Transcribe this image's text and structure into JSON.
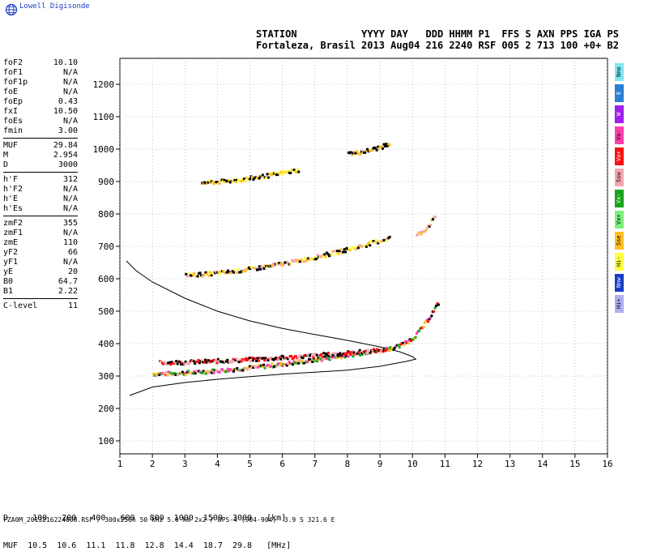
{
  "app": {
    "brand": "Lowell Digisonde",
    "logo_icon": "globe-icon"
  },
  "header": {
    "line1": "STATION           YYYY DAY   DDD HHMM P1  FFS S AXN PPS IGA PS",
    "line2": "Fortaleza, Brasil 2013 Aug04 216 2240 RSF 005 2 713 100 +0+ B2"
  },
  "params": [
    {
      "label": "foF2",
      "value": "10.10"
    },
    {
      "label": "foF1",
      "value": "N/A"
    },
    {
      "label": "foF1p",
      "value": "N/A"
    },
    {
      "label": "foE",
      "value": "N/A"
    },
    {
      "label": "foEp",
      "value": "0.43"
    },
    {
      "label": "fxI",
      "value": "10.50"
    },
    {
      "label": "foEs",
      "value": "N/A"
    },
    {
      "label": "fmin",
      "value": "3.00"
    },
    {
      "sep": true
    },
    {
      "label": "MUF",
      "value": "29.84"
    },
    {
      "label": "M",
      "value": "2.954"
    },
    {
      "label": "D",
      "value": "3000"
    },
    {
      "sep": true
    },
    {
      "label": "h'F",
      "value": "312"
    },
    {
      "label": "h'F2",
      "value": "N/A"
    },
    {
      "label": "h'E",
      "value": "N/A"
    },
    {
      "label": "h'Es",
      "value": "N/A"
    },
    {
      "sep": true
    },
    {
      "label": "zmF2",
      "value": "355"
    },
    {
      "label": "zmF1",
      "value": "N/A"
    },
    {
      "label": "zmE",
      "value": "110"
    },
    {
      "label": "yF2",
      "value": "66"
    },
    {
      "label": "yF1",
      "value": "N/A"
    },
    {
      "label": "yE",
      "value": "20"
    },
    {
      "label": "B0",
      "value": "64.7"
    },
    {
      "label": "B1",
      "value": "2.22"
    },
    {
      "sep": true
    },
    {
      "label": "C-level",
      "value": "11"
    }
  ],
  "legend": [
    {
      "label": "Nno",
      "color": "#7fe6f0"
    },
    {
      "label": "E",
      "color": "#2a7fd4"
    },
    {
      "label": "W",
      "color": "#a020f0"
    },
    {
      "label": "Vo-",
      "color": "#ff3fb0"
    },
    {
      "label": "Vo+",
      "color": "#ff1010"
    },
    {
      "label": "Ssw",
      "color": "#f4a6b0"
    },
    {
      "label": "Vx-",
      "color": "#1aa41a"
    },
    {
      "label": "Vx+",
      "color": "#7ef07e"
    },
    {
      "label": "Sse",
      "color": "#ffc020"
    },
    {
      "label": "Hi-",
      "color": "#ffff40"
    },
    {
      "label": "Nnw",
      "color": "#1a3cc8"
    },
    {
      "label": "Hi+",
      "color": "#b0b0f0"
    }
  ],
  "bottom": {
    "d_row": "D     100   200   400   600   800  1000  1500  3000   [km]",
    "muf_row": "MUF  10.5  10.6  11.1  11.8  12.8  14.4  18.7  29.8   [MHz]"
  },
  "footer": "FZA0M_2013216224000.RSF / 300x256h 50 kHz 5.0 km 2x2 / DPS-4 (904-904)  3.9 S 321.6 E",
  "chart_data": {
    "type": "scatter",
    "xlabel": "",
    "ylabel": "",
    "x_ticks": [
      1,
      2,
      3,
      4,
      5,
      6,
      7,
      8,
      9,
      10,
      11,
      12,
      13,
      14,
      15,
      16
    ],
    "y_ticks": [
      100,
      200,
      300,
      400,
      500,
      600,
      700,
      800,
      900,
      1000,
      1100,
      1200
    ],
    "xlim": [
      1,
      16
    ],
    "ylim": [
      60,
      1280
    ],
    "grid": "dotted",
    "profile_curve": [
      [
        1.2,
        655
      ],
      [
        1.5,
        625
      ],
      [
        2,
        590
      ],
      [
        3,
        540
      ],
      [
        4,
        500
      ],
      [
        5,
        470
      ],
      [
        6,
        447
      ],
      [
        7,
        428
      ],
      [
        8,
        410
      ],
      [
        9,
        390
      ],
      [
        9.6,
        375
      ],
      [
        10.0,
        360
      ],
      [
        10.1,
        352
      ],
      [
        9.8,
        345
      ],
      [
        9.0,
        330
      ],
      [
        8.0,
        318
      ],
      [
        7.0,
        312
      ],
      [
        6.0,
        306
      ],
      [
        5.0,
        298
      ],
      [
        4.0,
        290
      ],
      [
        3.0,
        280
      ],
      [
        2.0,
        266
      ],
      [
        1.3,
        240
      ]
    ],
    "traces": [
      {
        "name": "F2 O-trace",
        "x_range": [
          2.0,
          9.6
        ],
        "h_start": 310,
        "h_end": 395,
        "colors": [
          "#ff3fb0",
          "#1aa41a",
          "#ffc020",
          "#000000",
          "#f4a6b0"
        ]
      },
      {
        "name": "F2 upper band",
        "x_range": [
          2.2,
          9.2
        ],
        "h_start": 345,
        "h_end": 385,
        "colors": [
          "#000000",
          "#f4a6b0",
          "#ff1010"
        ]
      },
      {
        "name": "near-cusp",
        "x_range": [
          9.6,
          10.8
        ],
        "h_start": 400,
        "h_end": 535,
        "colors": [
          "#ff3fb0",
          "#1aa41a",
          "#ffc020",
          "#000000",
          "#ff1010"
        ]
      },
      {
        "name": "2F echo",
        "x_range": [
          3.0,
          9.3
        ],
        "h_start": 615,
        "h_end": 730,
        "colors": [
          "#000000",
          "#ffff40",
          "#f4a6b0",
          "#ffc020"
        ]
      },
      {
        "name": "2F cusp",
        "x_range": [
          10.1,
          10.7
        ],
        "h_start": 740,
        "h_end": 800,
        "colors": [
          "#000000",
          "#f4a6b0",
          "#ffc020"
        ]
      },
      {
        "name": "3F echo",
        "x_range": [
          3.5,
          6.5
        ],
        "h_start": 900,
        "h_end": 940,
        "colors": [
          "#000000",
          "#ffc020",
          "#ffff40"
        ]
      },
      {
        "name": "3F high",
        "x_range": [
          8.0,
          9.3
        ],
        "h_start": 990,
        "h_end": 1020,
        "colors": [
          "#000000",
          "#ffc020"
        ]
      }
    ]
  }
}
